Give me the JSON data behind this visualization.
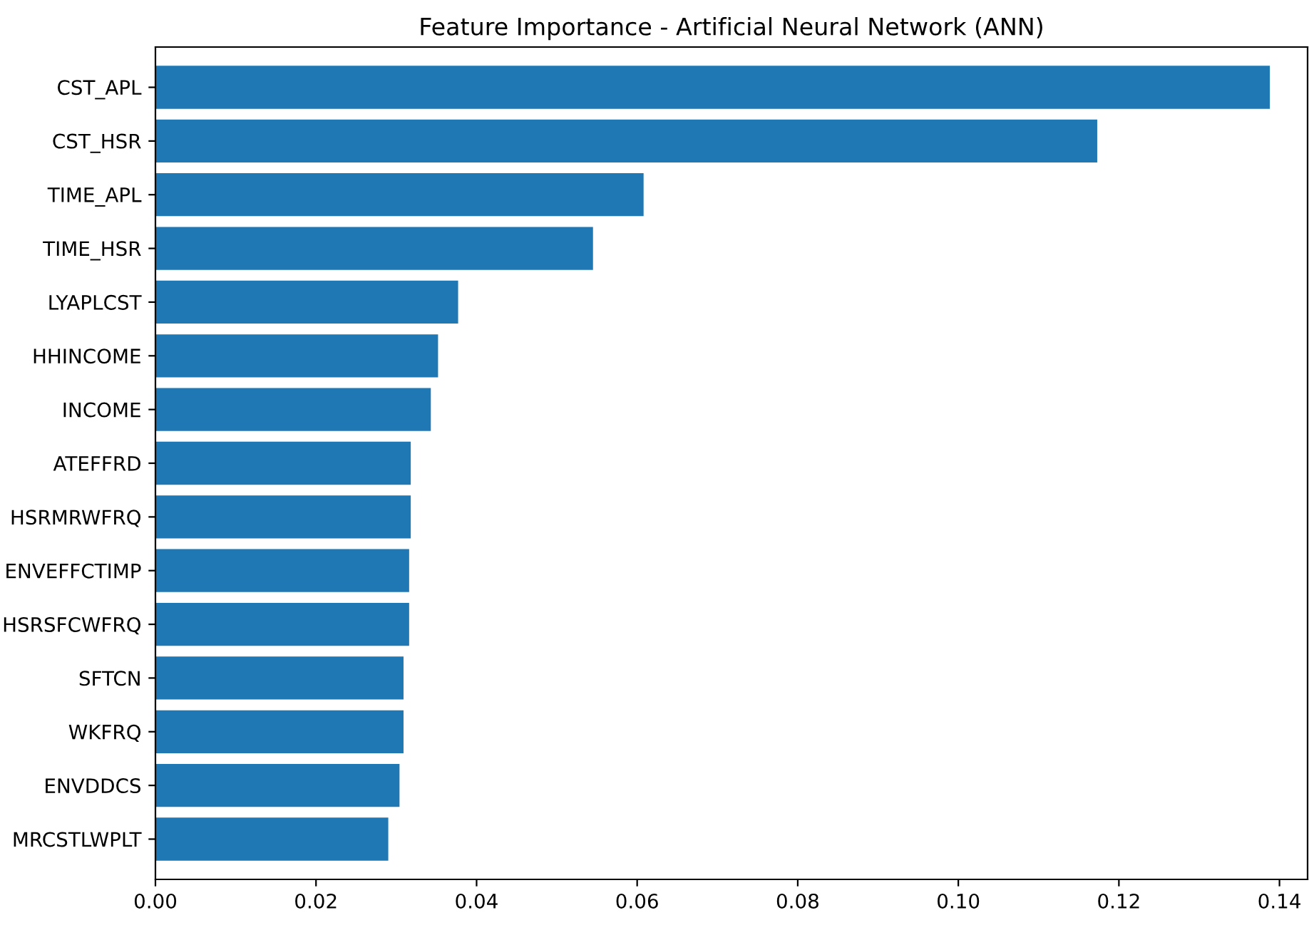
{
  "chart_data": {
    "type": "bar",
    "orientation": "horizontal",
    "title": "Feature Importance - Artificial Neural Network (ANN)",
    "categories": [
      "CST_APL",
      "CST_HSR",
      "TIME_APL",
      "TIME_HSR",
      "LYAPLCST",
      "HHINCOME",
      "INCOME",
      "ATEFFRD",
      "HSRMRWFRQ",
      "ENVEFFCTIMP",
      "HSRSFCWFRQ",
      "SFTCN",
      "WKFRQ",
      "ENVDDCS",
      "MRCSTLWPLT"
    ],
    "values": [
      0.1388,
      0.1173,
      0.0608,
      0.0545,
      0.0377,
      0.0352,
      0.0343,
      0.0318,
      0.0318,
      0.0316,
      0.0316,
      0.0309,
      0.0309,
      0.0304,
      0.029
    ],
    "color": "#1f77b4",
    "xlim": [
      0,
      0.1435
    ],
    "xticks": [
      {
        "value": 0,
        "label": "0.00"
      },
      {
        "value": 0.02,
        "label": "0.02"
      },
      {
        "value": 0.04,
        "label": "0.04"
      },
      {
        "value": 0.06,
        "label": "0.06"
      },
      {
        "value": 0.08,
        "label": "0.08"
      },
      {
        "value": 0.1,
        "label": "0.10"
      },
      {
        "value": 0.12,
        "label": "0.12"
      },
      {
        "value": 0.14,
        "label": "0.14"
      }
    ]
  }
}
